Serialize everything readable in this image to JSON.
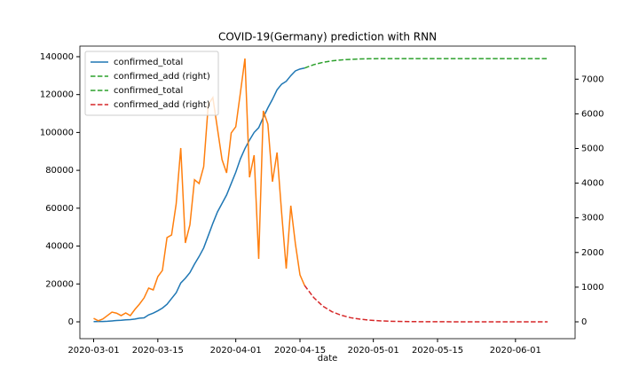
{
  "chart_data": {
    "type": "line",
    "title": "COVID-19(Germany) prediction with RNN",
    "x_label": "date",
    "xlim": [
      "2020-02-27",
      "2020-06-14"
    ],
    "xticks": [
      "2020-03-01",
      "2020-03-15",
      "2020-04-01",
      "2020-04-15",
      "2020-05-01",
      "2020-05-15",
      "2020-06-01"
    ],
    "ylim": [
      -8900,
      145600
    ],
    "yticks": [
      0,
      20000,
      40000,
      60000,
      80000,
      100000,
      120000,
      140000
    ],
    "y2lim": [
      -486,
      7954
    ],
    "y2ticks": [
      0,
      1000,
      2000,
      3000,
      4000,
      5000,
      6000,
      7000
    ],
    "legend": "upper left",
    "grid": false,
    "series": [
      {
        "name": "confirmed_total",
        "color": "#1f77b4",
        "style": "solid",
        "legend_color": "#1f77b4",
        "legend_style": "solid",
        "x": [
          "2020-03-01",
          "2020-03-02",
          "2020-03-03",
          "2020-03-04",
          "2020-03-05",
          "2020-03-06",
          "2020-03-07",
          "2020-03-08",
          "2020-03-09",
          "2020-03-10",
          "2020-03-11",
          "2020-03-12",
          "2020-03-13",
          "2020-03-14",
          "2020-03-15",
          "2020-03-16",
          "2020-03-17",
          "2020-03-18",
          "2020-03-19",
          "2020-03-20",
          "2020-03-21",
          "2020-03-22",
          "2020-03-23",
          "2020-03-24",
          "2020-03-25",
          "2020-03-26",
          "2020-03-27",
          "2020-03-28",
          "2020-03-29",
          "2020-03-30",
          "2020-03-31",
          "2020-04-01",
          "2020-04-02",
          "2020-04-03",
          "2020-04-04",
          "2020-04-05",
          "2020-04-06",
          "2020-04-07",
          "2020-04-08",
          "2020-04-09",
          "2020-04-10",
          "2020-04-11",
          "2020-04-12",
          "2020-04-13",
          "2020-04-14",
          "2020-04-15",
          "2020-04-16"
        ],
        "values": [
          130,
          159,
          196,
          262,
          482,
          670,
          799,
          1040,
          1176,
          1457,
          1908,
          2078,
          3675,
          4585,
          5813,
          7272,
          9257,
          12327,
          15320,
          20500,
          23000,
          26000,
          30500,
          34500,
          39000,
          45500,
          52000,
          58000,
          62500,
          67000,
          73000,
          79000,
          86000,
          91500,
          96000,
          100000,
          102500,
          108000,
          113000,
          117500,
          122500,
          125500,
          127000,
          130000,
          132500,
          133500,
          134000
        ]
      },
      {
        "name": "confirmed_add (right)",
        "color": "#ff7f0e",
        "style": "solid",
        "legend_color": "#2ca02c",
        "legend_style": "dashed",
        "axis": "y2",
        "x": [
          "2020-03-01",
          "2020-03-02",
          "2020-03-03",
          "2020-03-04",
          "2020-03-05",
          "2020-03-06",
          "2020-03-07",
          "2020-03-08",
          "2020-03-09",
          "2020-03-10",
          "2020-03-11",
          "2020-03-12",
          "2020-03-13",
          "2020-03-14",
          "2020-03-15",
          "2020-03-16",
          "2020-03-17",
          "2020-03-18",
          "2020-03-19",
          "2020-03-20",
          "2020-03-21",
          "2020-03-22",
          "2020-03-23",
          "2020-03-24",
          "2020-03-25",
          "2020-03-26",
          "2020-03-27",
          "2020-03-28",
          "2020-03-29",
          "2020-03-30",
          "2020-03-31",
          "2020-04-01",
          "2020-04-02",
          "2020-04-03",
          "2020-04-04",
          "2020-04-05",
          "2020-04-06",
          "2020-04-07",
          "2020-04-08",
          "2020-04-09",
          "2020-04-10",
          "2020-04-11",
          "2020-04-12",
          "2020-04-13",
          "2020-04-14",
          "2020-04-15",
          "2020-04-16"
        ],
        "values": [
          100,
          30,
          80,
          180,
          280,
          250,
          180,
          256,
          179,
          358,
          512,
          690,
          972,
          921,
          1304,
          1483,
          2430,
          2506,
          3401,
          5013,
          2276,
          2800,
          4100,
          3990,
          4475,
          6266,
          6470,
          5575,
          4680,
          4296,
          5448,
          5627,
          6600,
          7596,
          4169,
          4808,
          1816,
          6087,
          5703,
          4041,
          4885,
          3146,
          1535,
          3350,
          2251,
          1355,
          1049
        ]
      },
      {
        "name": "confirmed_total",
        "color": "#2ca02c",
        "style": "dashed",
        "legend_color": "#2ca02c",
        "legend_style": "dashed",
        "x": [
          "2020-04-16",
          "2020-04-18",
          "2020-04-20",
          "2020-04-22",
          "2020-04-24",
          "2020-04-26",
          "2020-04-28",
          "2020-04-30",
          "2020-05-03",
          "2020-05-06",
          "2020-05-10",
          "2020-05-15",
          "2020-05-20",
          "2020-05-25",
          "2020-05-30",
          "2020-06-04",
          "2020-06-08"
        ],
        "values": [
          134000,
          135800,
          137000,
          137800,
          138300,
          138600,
          138800,
          138900,
          139000,
          139000,
          139000,
          139000,
          139000,
          139000,
          139000,
          139000,
          139000
        ]
      },
      {
        "name": "confirmed_add (right)",
        "color": "#d62728",
        "style": "dashed",
        "legend_color": "#d62728",
        "legend_style": "dashed",
        "axis": "y2",
        "x": [
          "2020-04-16",
          "2020-04-18",
          "2020-04-20",
          "2020-04-22",
          "2020-04-24",
          "2020-04-26",
          "2020-04-28",
          "2020-04-30",
          "2020-05-03",
          "2020-05-06",
          "2020-05-10",
          "2020-05-15",
          "2020-05-20",
          "2020-05-25",
          "2020-05-30",
          "2020-06-04",
          "2020-06-08"
        ],
        "values": [
          1049,
          700,
          450,
          290,
          190,
          120,
          80,
          50,
          25,
          12,
          5,
          2,
          1,
          0,
          0,
          0,
          0
        ]
      }
    ]
  }
}
